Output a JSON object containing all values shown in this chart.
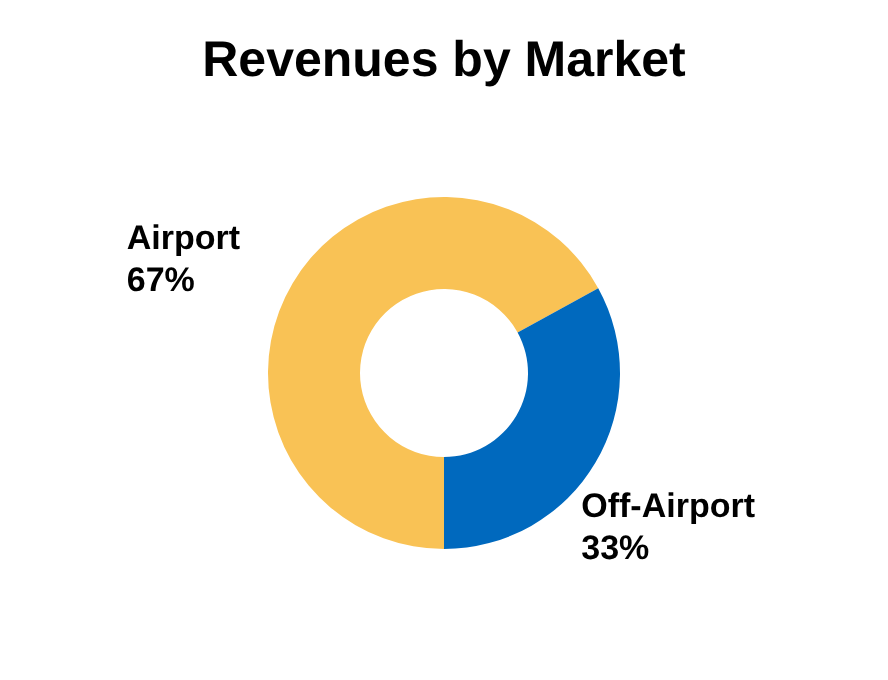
{
  "chart_data": {
    "type": "donut",
    "title": "Revenues by Market",
    "categories": [
      "Airport",
      "Off-Airport"
    ],
    "values": [
      67,
      33
    ],
    "colors": [
      "#f9c255",
      "#0069be"
    ],
    "value_labels": [
      "67%",
      "33%"
    ],
    "legend": false
  }
}
